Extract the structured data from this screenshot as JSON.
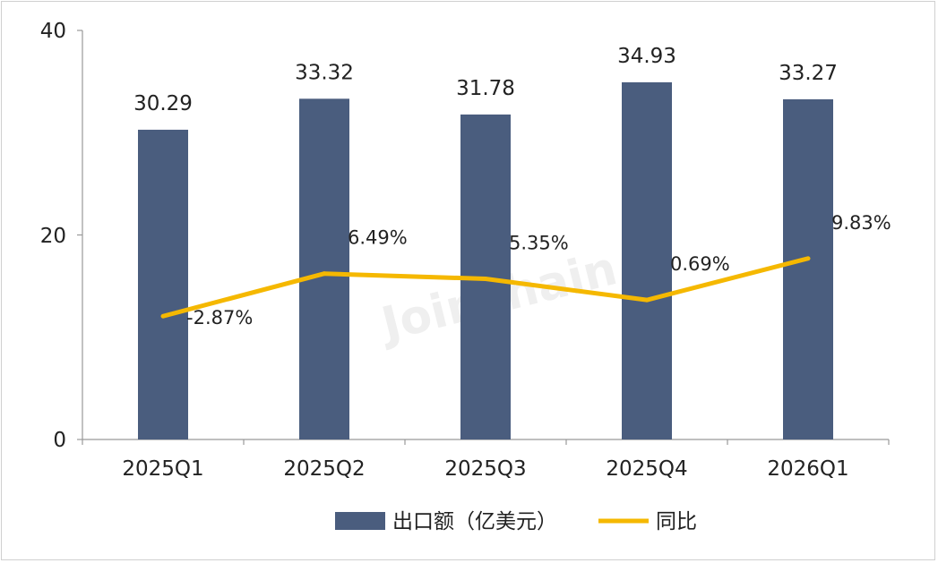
{
  "chart_data": {
    "type": "bar",
    "categories": [
      "2025Q1",
      "2025Q2",
      "2025Q3",
      "2025Q4",
      "2026Q1"
    ],
    "series": [
      {
        "name": "出口额（亿美元）",
        "type": "bar",
        "values": [
          30.29,
          33.32,
          31.78,
          34.93,
          33.27
        ],
        "labels": [
          "30.29",
          "33.32",
          "31.78",
          "34.93",
          "33.27"
        ]
      },
      {
        "name": "同比",
        "type": "line",
        "values": [
          -2.87,
          6.49,
          5.35,
          0.69,
          9.83
        ],
        "labels": [
          "-2.87%",
          "6.49%",
          "5.35%",
          "0.69%",
          "9.83%"
        ]
      }
    ],
    "yticks": [
      "0",
      "20",
      "40"
    ],
    "ylim": [
      0,
      40
    ],
    "line_ylim": [
      -30,
      60
    ],
    "legend_position": "bottom",
    "watermark": "Joinchain",
    "colors": {
      "bar": "#4a5d7e",
      "line": "#f5b800",
      "axis": "#999999"
    }
  }
}
